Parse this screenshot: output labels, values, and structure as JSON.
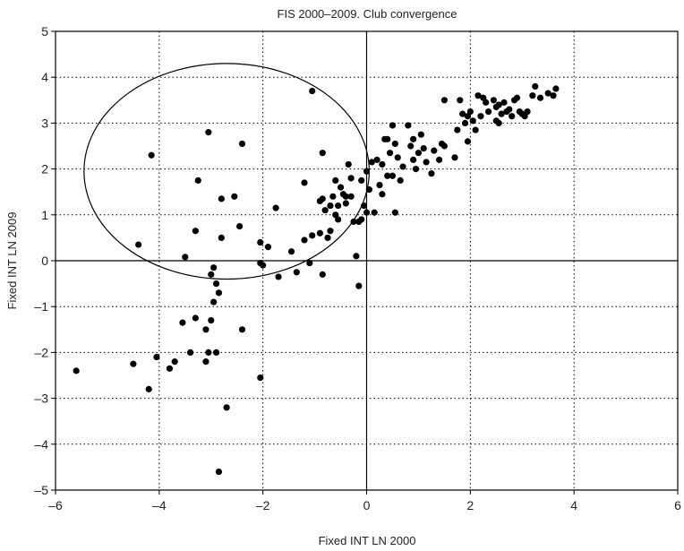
{
  "chart_data": {
    "type": "scatter",
    "title": "FIS 2000–2009. Club convergence",
    "xlabel": "Fixed INT LN 2000",
    "ylabel": "Fixed INT LN 2009",
    "xlim": [
      -6,
      6
    ],
    "ylim": [
      -5,
      5
    ],
    "xticks": [
      -6,
      -4,
      -2,
      0,
      2,
      4,
      6
    ],
    "yticks": [
      -5,
      -4,
      -3,
      -2,
      -1,
      0,
      1,
      2,
      3,
      4,
      5
    ],
    "xtick_labels": [
      "–6",
      "–4",
      "–2",
      "0",
      "2",
      "4",
      "6"
    ],
    "ytick_labels": [
      "–5",
      "–4",
      "–3",
      "–2",
      "–1",
      "0",
      "1",
      "2",
      "3",
      "4",
      "5"
    ],
    "grid": true,
    "grid_style": "dotted",
    "zero_lines": true,
    "marker_color": "#000000",
    "ellipse": {
      "cx": -2.7,
      "cy": 1.95,
      "rx": 2.75,
      "ry": 2.35
    },
    "points": [
      [
        -5.6,
        -2.4
      ],
      [
        -4.5,
        -2.25
      ],
      [
        -4.2,
        -2.8
      ],
      [
        -4.05,
        -2.1
      ],
      [
        -3.8,
        -2.35
      ],
      [
        -3.7,
        -2.2
      ],
      [
        -3.4,
        -2.0
      ],
      [
        -3.1,
        -2.2
      ],
      [
        -3.05,
        -2.0
      ],
      [
        -2.9,
        -2.0
      ],
      [
        -3.1,
        -1.5
      ],
      [
        -3.0,
        -1.3
      ],
      [
        -2.95,
        -0.9
      ],
      [
        -2.85,
        -0.7
      ],
      [
        -2.9,
        -0.5
      ],
      [
        -2.4,
        -1.5
      ],
      [
        -2.7,
        -3.2
      ],
      [
        -2.05,
        -2.55
      ],
      [
        -2.85,
        -4.6
      ],
      [
        -3.55,
        -1.35
      ],
      [
        -3.3,
        -1.25
      ],
      [
        -3.0,
        -0.3
      ],
      [
        -2.95,
        -0.15
      ],
      [
        -4.4,
        0.35
      ],
      [
        -3.5,
        0.08
      ],
      [
        -3.3,
        0.65
      ],
      [
        -2.8,
        0.5
      ],
      [
        -2.45,
        0.75
      ],
      [
        -2.05,
        0.4
      ],
      [
        -2.05,
        -0.05
      ],
      [
        -2.0,
        -0.1
      ],
      [
        -1.9,
        0.3
      ],
      [
        -1.75,
        1.15
      ],
      [
        -1.7,
        -0.35
      ],
      [
        -1.45,
        0.2
      ],
      [
        -1.35,
        -0.25
      ],
      [
        -1.2,
        0.45
      ],
      [
        -1.1,
        -0.05
      ],
      [
        -1.05,
        0.55
      ],
      [
        -1.2,
        1.7
      ],
      [
        -0.9,
        0.6
      ],
      [
        -0.85,
        1.35
      ],
      [
        -0.85,
        -0.3
      ],
      [
        -0.8,
        1.1
      ],
      [
        -0.75,
        0.5
      ],
      [
        -0.7,
        0.65
      ],
      [
        -0.65,
        1.4
      ],
      [
        -0.6,
        1.0
      ],
      [
        -0.55,
        0.9
      ],
      [
        -0.5,
        1.6
      ],
      [
        -0.45,
        1.45
      ],
      [
        -0.4,
        1.4
      ],
      [
        -0.35,
        2.1
      ],
      [
        -0.3,
        1.8
      ],
      [
        -0.2,
        0.1
      ],
      [
        -0.15,
        0.85
      ],
      [
        -0.1,
        0.9
      ],
      [
        -0.05,
        1.2
      ],
      [
        0.0,
        1.05
      ],
      [
        0.05,
        1.55
      ],
      [
        -0.1,
        1.75
      ],
      [
        0.15,
        1.05
      ],
      [
        0.2,
        2.2
      ],
      [
        0.25,
        1.65
      ],
      [
        0.3,
        2.1
      ],
      [
        0.3,
        1.45
      ],
      [
        0.35,
        2.65
      ],
      [
        0.4,
        1.85
      ],
      [
        0.45,
        2.35
      ],
      [
        0.5,
        2.95
      ],
      [
        0.55,
        1.05
      ],
      [
        0.55,
        2.55
      ],
      [
        0.6,
        2.25
      ],
      [
        0.65,
        1.75
      ],
      [
        0.7,
        2.05
      ],
      [
        0.8,
        2.95
      ],
      [
        0.85,
        2.5
      ],
      [
        0.9,
        2.2
      ],
      [
        0.95,
        2.0
      ],
      [
        1.0,
        2.35
      ],
      [
        1.05,
        2.75
      ],
      [
        1.1,
        2.45
      ],
      [
        1.15,
        2.15
      ],
      [
        1.25,
        1.9
      ],
      [
        1.3,
        2.4
      ],
      [
        1.4,
        2.2
      ],
      [
        1.45,
        2.55
      ],
      [
        1.5,
        2.5
      ],
      [
        1.5,
        3.5
      ],
      [
        1.7,
        2.25
      ],
      [
        1.75,
        2.85
      ],
      [
        1.8,
        3.5
      ],
      [
        1.85,
        3.2
      ],
      [
        1.9,
        3.0
      ],
      [
        1.95,
        3.15
      ],
      [
        2.0,
        3.25
      ],
      [
        1.95,
        2.6
      ],
      [
        2.05,
        3.05
      ],
      [
        2.1,
        2.85
      ],
      [
        2.2,
        3.15
      ],
      [
        2.25,
        3.55
      ],
      [
        2.3,
        3.45
      ],
      [
        2.35,
        3.25
      ],
      [
        2.45,
        3.5
      ],
      [
        2.5,
        3.35
      ],
      [
        2.5,
        3.05
      ],
      [
        2.55,
        3.0
      ],
      [
        2.6,
        3.2
      ],
      [
        2.65,
        3.45
      ],
      [
        2.7,
        3.25
      ],
      [
        2.75,
        3.3
      ],
      [
        2.8,
        3.15
      ],
      [
        2.85,
        3.5
      ],
      [
        2.9,
        3.55
      ],
      [
        2.95,
        3.25
      ],
      [
        3.0,
        3.2
      ],
      [
        3.05,
        3.15
      ],
      [
        3.1,
        3.25
      ],
      [
        3.2,
        3.6
      ],
      [
        3.25,
        3.8
      ],
      [
        3.35,
        3.55
      ],
      [
        3.5,
        3.65
      ],
      [
        3.6,
        3.6
      ],
      [
        3.65,
        3.75
      ],
      [
        2.15,
        3.6
      ],
      [
        2.55,
        3.4
      ],
      [
        -3.05,
        2.8
      ],
      [
        -2.4,
        2.55
      ],
      [
        -4.15,
        2.3
      ],
      [
        -3.25,
        1.75
      ],
      [
        -2.8,
        1.35
      ],
      [
        -2.55,
        1.4
      ],
      [
        -1.05,
        3.7
      ],
      [
        -0.85,
        2.35
      ],
      [
        -0.6,
        1.75
      ],
      [
        -0.9,
        1.3
      ],
      [
        -0.4,
        1.25
      ],
      [
        -0.55,
        1.2
      ],
      [
        -0.25,
        0.85
      ],
      [
        0.0,
        1.95
      ],
      [
        0.4,
        2.65
      ],
      [
        0.1,
        2.15
      ],
      [
        0.5,
        1.85
      ],
      [
        0.9,
        2.65
      ],
      [
        -0.15,
        -0.55
      ],
      [
        -0.7,
        1.2
      ],
      [
        -0.3,
        1.4
      ]
    ]
  }
}
